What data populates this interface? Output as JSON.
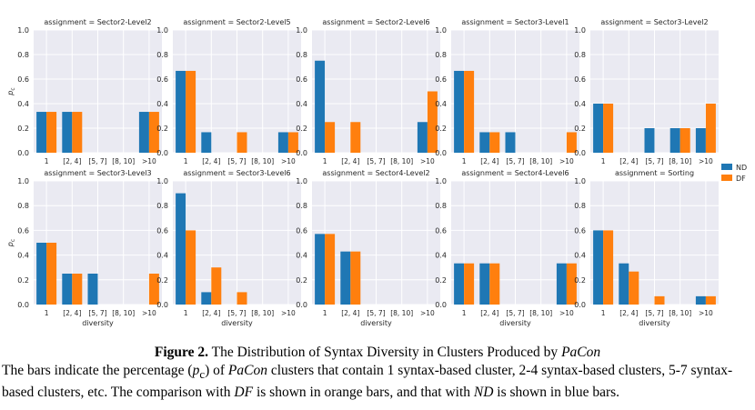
{
  "colors": {
    "nd": "#1f77b4",
    "df": "#ff7f0e",
    "panel_bg": "#eaeaf2",
    "grid": "#ffffff"
  },
  "chart_data": {
    "type": "bar",
    "xlabel": "diversity",
    "ylabel": "p_c",
    "ylim": [
      0,
      1.0
    ],
    "yticks": [
      "0.0",
      "0.2",
      "0.4",
      "0.6",
      "0.8",
      "1.0"
    ],
    "categories": [
      "1",
      "[2, 4]",
      "[5, 7]",
      "[8, 10]",
      ">10"
    ],
    "legend": {
      "placement": "right",
      "entries": [
        "ND",
        "DF"
      ]
    },
    "panels": [
      {
        "title": "assignment = Sector2-Level2",
        "series": [
          {
            "name": "ND",
            "values": [
              0.333,
              0.333,
              0,
              0,
              0.333
            ]
          },
          {
            "name": "DF",
            "values": [
              0.333,
              0.333,
              0,
              0,
              0.333
            ]
          }
        ]
      },
      {
        "title": "assignment = Sector2-Level5",
        "series": [
          {
            "name": "ND",
            "values": [
              0.667,
              0.167,
              0,
              0,
              0.167
            ]
          },
          {
            "name": "DF",
            "values": [
              0.667,
              0,
              0.167,
              0,
              0.167
            ]
          }
        ]
      },
      {
        "title": "assignment = Sector2-Level6",
        "series": [
          {
            "name": "ND",
            "values": [
              0.75,
              0,
              0,
              0,
              0.25
            ]
          },
          {
            "name": "DF",
            "values": [
              0.25,
              0.25,
              0,
              0,
              0.5
            ]
          }
        ]
      },
      {
        "title": "assignment = Sector3-Level1",
        "series": [
          {
            "name": "ND",
            "values": [
              0.667,
              0.167,
              0.167,
              0,
              0
            ]
          },
          {
            "name": "DF",
            "values": [
              0.667,
              0.167,
              0,
              0,
              0.167
            ]
          }
        ]
      },
      {
        "title": "assignment = Sector3-Level2",
        "series": [
          {
            "name": "ND",
            "values": [
              0.4,
              0,
              0.2,
              0.2,
              0.2
            ]
          },
          {
            "name": "DF",
            "values": [
              0.4,
              0,
              0,
              0.2,
              0.4
            ]
          }
        ]
      },
      {
        "title": "assignment = Sector3-Level3",
        "series": [
          {
            "name": "ND",
            "values": [
              0.5,
              0.25,
              0.25,
              0,
              0
            ]
          },
          {
            "name": "DF",
            "values": [
              0.5,
              0.25,
              0,
              0,
              0.25
            ]
          }
        ]
      },
      {
        "title": "assignment = Sector3-Level6",
        "series": [
          {
            "name": "ND",
            "values": [
              0.9,
              0.1,
              0,
              0,
              0
            ]
          },
          {
            "name": "DF",
            "values": [
              0.6,
              0.3,
              0.1,
              0,
              0
            ]
          }
        ]
      },
      {
        "title": "assignment = Sector4-Level2",
        "series": [
          {
            "name": "ND",
            "values": [
              0.571,
              0.429,
              0,
              0,
              0
            ]
          },
          {
            "name": "DF",
            "values": [
              0.571,
              0.429,
              0,
              0,
              0
            ]
          }
        ]
      },
      {
        "title": "assignment = Sector4-Level6",
        "series": [
          {
            "name": "ND",
            "values": [
              0.333,
              0.333,
              0,
              0,
              0.333
            ]
          },
          {
            "name": "DF",
            "values": [
              0.333,
              0.333,
              0,
              0,
              0.333
            ]
          }
        ]
      },
      {
        "title": "assignment = Sorting",
        "series": [
          {
            "name": "ND",
            "values": [
              0.6,
              0.333,
              0,
              0,
              0.067
            ]
          },
          {
            "name": "DF",
            "values": [
              0.6,
              0.267,
              0.067,
              0,
              0.067
            ]
          }
        ]
      }
    ]
  },
  "caption": {
    "figure_label": "Figure 2.",
    "title_text": "The Distribution of Syntax Diversity in Clusters Produced by",
    "title_tool": "PaCon",
    "body": [
      {
        "t": "The bars indicate the percentage ("
      },
      {
        "t": "p",
        "i": true
      },
      {
        "t": "c",
        "sub": true
      },
      {
        "t": ") of "
      },
      {
        "t": "PaCon",
        "i": true
      },
      {
        "t": " clusters that contain 1 syntax-based cluster, 2-4 syntax-based clusters, 5-7 syntax-based clusters, etc. The comparison with "
      },
      {
        "t": "DF",
        "i": true
      },
      {
        "t": " is shown in orange bars, and that with "
      },
      {
        "t": "ND",
        "i": true
      },
      {
        "t": " is shown in blue bars."
      }
    ]
  }
}
